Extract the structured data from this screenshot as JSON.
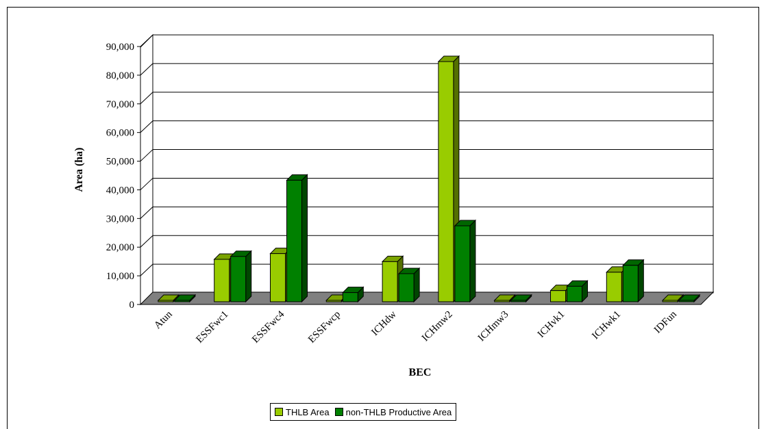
{
  "chart_data": {
    "type": "bar",
    "title": "",
    "xlabel": "BEC",
    "ylabel": "Area (ha)",
    "ylim": [
      0,
      90000
    ],
    "yticks": [
      0,
      10000,
      20000,
      30000,
      40000,
      50000,
      60000,
      70000,
      80000,
      90000
    ],
    "ytick_labels": [
      "0",
      "10,000",
      "20,000",
      "30,000",
      "40,000",
      "50,000",
      "60,000",
      "70,000",
      "80,000",
      "90,000"
    ],
    "categories": [
      "Atun",
      "ESSFwc1",
      "ESSFwc4",
      "ESSFwcp",
      "ICHdw",
      "ICHmw2",
      "ICHmw3",
      "ICHvk1",
      "ICHwk1",
      "IDFun"
    ],
    "series": [
      {
        "name": "THLB Area",
        "color": "#99cc00",
        "values": [
          100,
          14800,
          16800,
          100,
          14000,
          83800,
          300,
          3900,
          10300,
          400
        ]
      },
      {
        "name": "non-THLB Productive Area",
        "color": "#008000",
        "values": [
          200,
          15800,
          42400,
          3200,
          9800,
          26500,
          100,
          5400,
          12700,
          200
        ]
      }
    ],
    "grid": true,
    "legend_position": "bottom",
    "three_d": true
  }
}
